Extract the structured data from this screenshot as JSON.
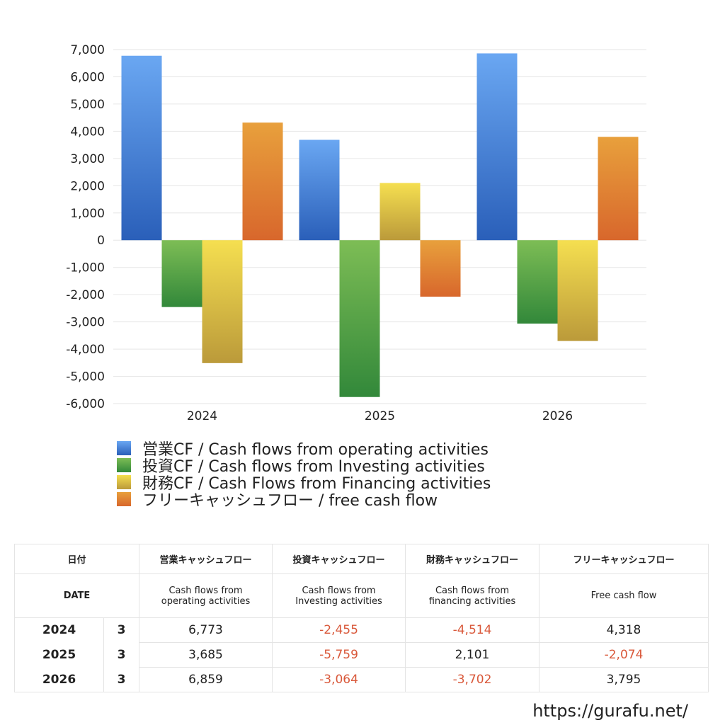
{
  "chart_data": {
    "type": "bar",
    "categories": [
      "2024",
      "2025",
      "2026"
    ],
    "series": [
      {
        "name": "営業CF / Cash flows from operating activities",
        "values": [
          6773,
          3685,
          6859
        ],
        "color_top": "#6aa7f2",
        "color_bottom": "#2a5fb9"
      },
      {
        "name": "投資CF / Cash flows from Investing activities",
        "values": [
          -2455,
          -5759,
          -3064
        ],
        "color_top": "#7dbd55",
        "color_bottom": "#32883a"
      },
      {
        "name": "財務CF / Cash Flows from Financing activities",
        "values": [
          -4514,
          2101,
          -3702
        ],
        "color_top": "#f5df50",
        "color_bottom": "#bb9a3a"
      },
      {
        "name": "フリーキャッシュフロー / free cash flow",
        "values": [
          4318,
          -2074,
          3795
        ],
        "color_top": "#e8a03c",
        "color_bottom": "#d8672c"
      }
    ],
    "ylim": [
      -6000,
      7000
    ],
    "yticks": [
      7000,
      6000,
      5000,
      4000,
      3000,
      2000,
      1000,
      0,
      -1000,
      -2000,
      -3000,
      -4000,
      -5000,
      -6000
    ],
    "ytick_labels": [
      "7,000",
      "6,000",
      "5,000",
      "4,000",
      "3,000",
      "2,000",
      "1,000",
      "0",
      "-1,000",
      "-2,000",
      "-3,000",
      "-4,000",
      "-5,000",
      "-6,000"
    ],
    "grid": true,
    "legend": "bottom"
  },
  "table": {
    "header1": {
      "date": "日付",
      "operating": "営業キャッシュフロー",
      "investing": "投資キャッシュフロー",
      "financing": "財務キャッシュフロー",
      "free": "フリーキャッシュフロー"
    },
    "header2": {
      "date": "DATE",
      "operating_l1": "Cash flows from",
      "operating_l2": "operating activities",
      "investing_l1": "Cash flows from",
      "investing_l2": "Investing activities",
      "financing_l1": "Cash flows from",
      "financing_l2": "financing activities",
      "free": "Free cash flow"
    },
    "rows": [
      {
        "year": "2024",
        "month": "3",
        "operating": "6,773",
        "investing": "-2,455",
        "financing": "-4,514",
        "free": "4,318"
      },
      {
        "year": "2025",
        "month": "3",
        "operating": "3,685",
        "investing": "-5,759",
        "financing": "2,101",
        "free": "-2,074"
      },
      {
        "year": "2026",
        "month": "3",
        "operating": "6,859",
        "investing": "-3,064",
        "financing": "-3,702",
        "free": "3,795"
      }
    ]
  },
  "footer": {
    "url": "https://gurafu.net/"
  }
}
